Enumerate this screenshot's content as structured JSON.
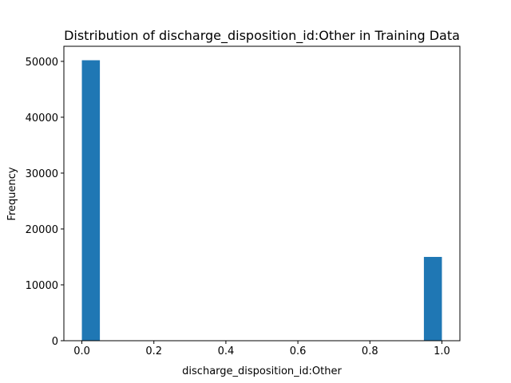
{
  "chart_data": {
    "type": "bar",
    "title": "Distribution of discharge_disposition_id:Other in Training Data",
    "xlabel": "discharge_disposition_id:Other",
    "ylabel": "Frequency",
    "bins": [
      {
        "x0": 0.0,
        "x1": 0.05,
        "count": 50200
      },
      {
        "x0": 0.95,
        "x1": 1.0,
        "count": 15000
      }
    ],
    "xlim": [
      -0.05,
      1.05
    ],
    "ylim": [
      0,
      52700
    ],
    "xticks": [
      {
        "value": 0.0,
        "label": "0.0"
      },
      {
        "value": 0.2,
        "label": "0.2"
      },
      {
        "value": 0.4,
        "label": "0.4"
      },
      {
        "value": 0.6,
        "label": "0.6"
      },
      {
        "value": 0.8,
        "label": "0.8"
      },
      {
        "value": 1.0,
        "label": "1.0"
      }
    ],
    "yticks": [
      {
        "value": 0,
        "label": "0"
      },
      {
        "value": 10000,
        "label": "10000"
      },
      {
        "value": 20000,
        "label": "20000"
      },
      {
        "value": 30000,
        "label": "30000"
      },
      {
        "value": 40000,
        "label": "40000"
      },
      {
        "value": 50000,
        "label": "50000"
      }
    ],
    "bar_color": "#1f77b4",
    "grid": false
  }
}
